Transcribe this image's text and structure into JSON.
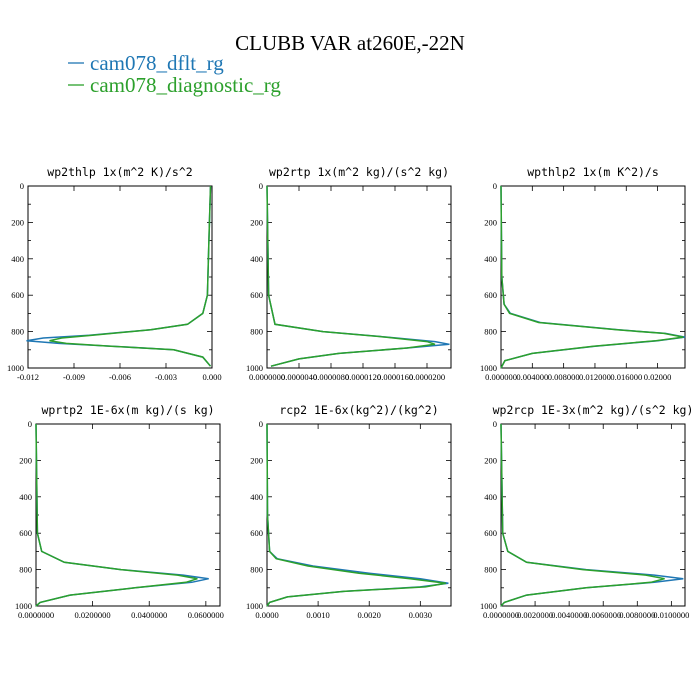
{
  "figure": {
    "title": "CLUBB VAR at260E,-22N",
    "legend": [
      {
        "label": "cam078_dflt_rg",
        "color": "#1f77b4"
      },
      {
        "label": "cam078_diagnostic_rg",
        "color": "#2ca02c"
      }
    ]
  },
  "chart_data": [
    {
      "type": "line",
      "title": "wp2thlp  1x(m^2 K)/s^2",
      "ylim": [
        1000,
        0
      ],
      "xlim": [
        -0.012,
        0.0
      ],
      "xticks": [
        "-0.012",
        "-0.009",
        "-0.006",
        "-0.003",
        "0.000"
      ],
      "xtick_values": [
        -0.012,
        -0.009,
        -0.006,
        -0.003,
        0.0
      ],
      "yticks": [
        "0",
        "200",
        "400",
        "600",
        "800",
        "1000"
      ],
      "y": [
        0,
        300,
        600,
        700,
        760,
        790,
        820,
        835,
        850,
        865,
        880,
        900,
        940,
        990
      ],
      "series": [
        {
          "name": "cam078_dflt_rg",
          "color": "#1f77b4",
          "values": [
            -0.0001,
            -0.0002,
            -0.0003,
            -0.0006,
            -0.0016,
            -0.004,
            -0.008,
            -0.011,
            -0.0121,
            -0.01,
            -0.0065,
            -0.0025,
            -0.0006,
            -0.0001
          ]
        },
        {
          "name": "cam078_diagnostic_rg",
          "color": "#2ca02c",
          "values": [
            -0.0001,
            -0.0002,
            -0.0003,
            -0.0006,
            -0.0016,
            -0.004,
            -0.0078,
            -0.0098,
            -0.0106,
            -0.0095,
            -0.0066,
            -0.0025,
            -0.0006,
            -0.0001
          ]
        }
      ]
    },
    {
      "type": "line",
      "title": "wp2rtp  1x(m^2 kg)/(s^2 kg)",
      "ylim": [
        1000,
        0
      ],
      "xlim": [
        0.0,
        2.3e-05
      ],
      "xticks": [
        "0.0000000",
        "0.0000040",
        "0.0000080",
        "0.0000120",
        "0.0000160",
        "0.0000200"
      ],
      "xtick_values": [
        0.0,
        4e-06,
        8e-06,
        1.2e-05,
        1.6e-05,
        2e-05
      ],
      "yticks": [
        "0",
        "200",
        "400",
        "600",
        "800",
        "1000"
      ],
      "y": [
        0,
        600,
        760,
        800,
        830,
        855,
        870,
        890,
        920,
        950,
        990
      ],
      "series": [
        {
          "name": "cam078_dflt_rg",
          "color": "#1f77b4",
          "values": [
            0.0,
            2e-07,
            1e-06,
            7e-06,
            1.5e-05,
            2.1e-05,
            2.28e-05,
            1.75e-05,
            9e-06,
            4e-06,
            5e-07
          ]
        },
        {
          "name": "cam078_diagnostic_rg",
          "color": "#2ca02c",
          "values": [
            0.0,
            2e-07,
            1e-06,
            7e-06,
            1.48e-05,
            2e-05,
            2.1e-05,
            1.75e-05,
            9e-06,
            4e-06,
            5e-07
          ]
        }
      ]
    },
    {
      "type": "line",
      "title": "wpthlp2  1x(m K^2)/s",
      "ylim": [
        1000,
        0
      ],
      "xlim": [
        0.0,
        0.0235
      ],
      "xticks": [
        "0.000000",
        "0.004000",
        "0.008000",
        "0.012000",
        "0.016000",
        "0.02000"
      ],
      "xtick_values": [
        0.0,
        0.004,
        0.008,
        0.012,
        0.016,
        0.02
      ],
      "yticks": [
        "0",
        "200",
        "400",
        "600",
        "800",
        "1000"
      ],
      "y": [
        0,
        500,
        650,
        700,
        750,
        790,
        810,
        830,
        850,
        880,
        920,
        960,
        1000
      ],
      "series": [
        {
          "name": "cam078_dflt_rg",
          "color": "#1f77b4",
          "values": [
            0.0,
            0.0001,
            0.0004,
            0.0012,
            0.005,
            0.015,
            0.021,
            0.0235,
            0.02,
            0.012,
            0.004,
            0.0005,
            0.0
          ]
        },
        {
          "name": "cam078_diagnostic_rg",
          "color": "#2ca02c",
          "values": [
            0.0,
            0.0001,
            0.0004,
            0.0011,
            0.0048,
            0.0148,
            0.0208,
            0.0233,
            0.0198,
            0.0118,
            0.004,
            0.0005,
            0.0
          ]
        }
      ]
    },
    {
      "type": "line",
      "title": "wprtp2  1E-6x(m kg)/(s kg)",
      "ylim": [
        1000,
        0
      ],
      "xlim": [
        0.0,
        0.065
      ],
      "xticks": [
        "0.0000000",
        "0.0200000",
        "0.0400000",
        "0.0600000"
      ],
      "xtick_values": [
        0.0,
        0.02,
        0.04,
        0.06
      ],
      "yticks": [
        "0",
        "200",
        "400",
        "600",
        "800",
        "1000"
      ],
      "y": [
        0,
        600,
        700,
        760,
        800,
        830,
        850,
        870,
        900,
        940,
        980,
        1000
      ],
      "series": [
        {
          "name": "cam078_dflt_rg",
          "color": "#1f77b4",
          "values": [
            0.0,
            0.0005,
            0.002,
            0.01,
            0.03,
            0.052,
            0.061,
            0.055,
            0.035,
            0.012,
            0.0015,
            0.0
          ]
        },
        {
          "name": "cam078_diagnostic_rg",
          "color": "#2ca02c",
          "values": [
            0.0,
            0.0005,
            0.002,
            0.01,
            0.03,
            0.05,
            0.057,
            0.053,
            0.035,
            0.012,
            0.0015,
            0.0
          ]
        }
      ]
    },
    {
      "type": "line",
      "title": "rcp2  1E-6x(kg^2)/(kg^2)",
      "ylim": [
        1000,
        0
      ],
      "xlim": [
        0.0,
        0.0036
      ],
      "xticks": [
        "0.0000",
        "0.0010",
        "0.0020",
        "0.0030"
      ],
      "xtick_values": [
        0.0,
        0.001,
        0.002,
        0.003
      ],
      "yticks": [
        "0",
        "200",
        "400",
        "600",
        "800",
        "1000"
      ],
      "y": [
        0,
        500,
        700,
        740,
        780,
        820,
        850,
        875,
        895,
        920,
        950,
        980,
        1000
      ],
      "series": [
        {
          "name": "cam078_dflt_rg",
          "color": "#1f77b4",
          "values": [
            0.0,
            1e-05,
            5e-05,
            0.0002,
            0.0009,
            0.002,
            0.003,
            0.00355,
            0.003,
            0.0015,
            0.0004,
            5e-05,
            0.0
          ]
        },
        {
          "name": "cam078_diagnostic_rg",
          "color": "#2ca02c",
          "values": [
            0.0,
            1e-05,
            5e-05,
            0.00018,
            0.0008,
            0.0018,
            0.0028,
            0.0035,
            0.0031,
            0.0015,
            0.0004,
            5e-05,
            0.0
          ]
        }
      ]
    },
    {
      "type": "line",
      "title": "wp2rcp  1E-3x(m^2 kg)/(s^2 kg)",
      "ylim": [
        1000,
        0
      ],
      "xlim": [
        0.0,
        0.0108
      ],
      "xticks": [
        "0.0000000",
        "0.0020000",
        "0.0040000",
        "0.0060000",
        "0.0080000",
        "0.0100000"
      ],
      "xtick_values": [
        0.0,
        0.002,
        0.004,
        0.006,
        0.008,
        0.01
      ],
      "yticks": [
        "0",
        "200",
        "400",
        "600",
        "800",
        "1000"
      ],
      "y": [
        0,
        600,
        700,
        760,
        800,
        830,
        850,
        870,
        900,
        940,
        980,
        1000
      ],
      "series": [
        {
          "name": "cam078_dflt_rg",
          "color": "#1f77b4",
          "values": [
            0.0,
            0.0001,
            0.0004,
            0.0015,
            0.005,
            0.009,
            0.0107,
            0.009,
            0.005,
            0.0015,
            0.0002,
            0.0
          ]
        },
        {
          "name": "cam078_diagnostic_rg",
          "color": "#2ca02c",
          "values": [
            0.0,
            0.0001,
            0.0004,
            0.0015,
            0.0048,
            0.0085,
            0.0096,
            0.0088,
            0.005,
            0.0015,
            0.0002,
            0.0
          ]
        }
      ]
    }
  ]
}
